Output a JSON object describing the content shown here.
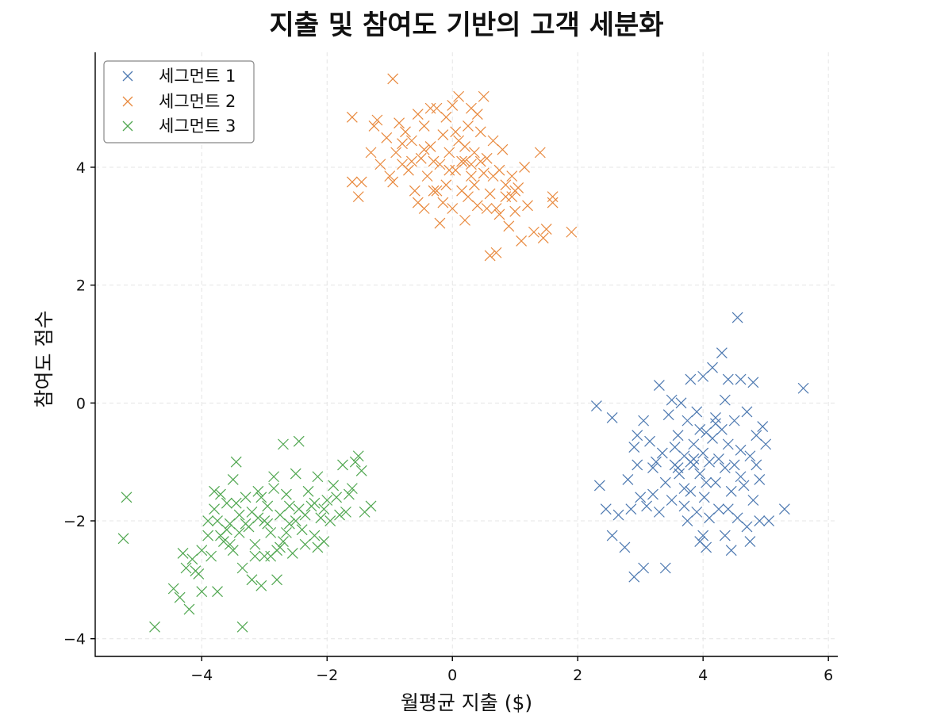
{
  "chart_data": {
    "type": "scatter",
    "title": "지출 및 참여도 기반의 고객 세분화",
    "xlabel": "월평균 지출 ($)",
    "ylabel": "참여도 점수",
    "xlim": [
      -5.7,
      6.15
    ],
    "ylim": [
      -4.3,
      5.95
    ],
    "xticks": [
      -4,
      -2,
      0,
      2,
      4,
      6
    ],
    "yticks": [
      -4,
      -2,
      0,
      2,
      4
    ],
    "xtick_labels": [
      "−4",
      "−2",
      "0",
      "2",
      "4",
      "6"
    ],
    "ytick_labels": [
      "−4",
      "−2",
      "0",
      "2",
      "4"
    ],
    "grid": true,
    "legend_position": "top-left",
    "marker": "x",
    "series": [
      {
        "name": "세그먼트 1",
        "color": "#4c78b0",
        "points": [
          [
            2.3,
            -0.05
          ],
          [
            2.35,
            -1.4
          ],
          [
            2.45,
            -1.8
          ],
          [
            2.55,
            -0.25
          ],
          [
            2.55,
            -2.25
          ],
          [
            2.65,
            -1.9
          ],
          [
            2.75,
            -2.45
          ],
          [
            2.8,
            -1.3
          ],
          [
            2.85,
            -1.8
          ],
          [
            2.9,
            -0.75
          ],
          [
            2.9,
            -2.95
          ],
          [
            2.95,
            -1.05
          ],
          [
            2.95,
            -0.55
          ],
          [
            3.0,
            -1.6
          ],
          [
            3.05,
            -2.8
          ],
          [
            3.1,
            -1.75
          ],
          [
            3.15,
            -0.65
          ],
          [
            3.2,
            -1.55
          ],
          [
            3.25,
            -1.0
          ],
          [
            3.3,
            0.3
          ],
          [
            3.3,
            -1.85
          ],
          [
            3.35,
            -0.85
          ],
          [
            3.4,
            -2.8
          ],
          [
            3.4,
            -1.35
          ],
          [
            3.45,
            -0.2
          ],
          [
            3.5,
            -1.65
          ],
          [
            3.55,
            -1.05
          ],
          [
            3.6,
            -0.55
          ],
          [
            3.62,
            -1.2
          ],
          [
            3.65,
            0.0
          ],
          [
            3.7,
            -0.9
          ],
          [
            3.7,
            -1.75
          ],
          [
            3.75,
            -0.3
          ],
          [
            3.75,
            -2.0
          ],
          [
            3.8,
            -1.5
          ],
          [
            3.8,
            0.4
          ],
          [
            3.85,
            -1.05
          ],
          [
            3.85,
            -0.7
          ],
          [
            3.9,
            -1.85
          ],
          [
            3.9,
            -0.15
          ],
          [
            3.95,
            -1.2
          ],
          [
            3.95,
            -2.35
          ],
          [
            4.0,
            -0.85
          ],
          [
            4.0,
            0.45
          ],
          [
            4.02,
            -1.6
          ],
          [
            4.05,
            -2.45
          ],
          [
            4.05,
            -0.5
          ],
          [
            4.1,
            -1.0
          ],
          [
            4.1,
            -1.95
          ],
          [
            4.15,
            0.6
          ],
          [
            4.15,
            -0.6
          ],
          [
            4.2,
            -1.35
          ],
          [
            4.2,
            -0.25
          ],
          [
            4.25,
            -1.8
          ],
          [
            4.3,
            0.85
          ],
          [
            4.3,
            -0.45
          ],
          [
            4.35,
            -1.1
          ],
          [
            4.35,
            -2.25
          ],
          [
            4.4,
            0.4
          ],
          [
            4.4,
            -0.7
          ],
          [
            4.45,
            -1.5
          ],
          [
            4.45,
            -2.5
          ],
          [
            4.5,
            -0.3
          ],
          [
            4.5,
            -1.05
          ],
          [
            4.55,
            1.45
          ],
          [
            4.55,
            -1.95
          ],
          [
            4.6,
            -0.8
          ],
          [
            4.6,
            0.4
          ],
          [
            4.65,
            -1.4
          ],
          [
            4.7,
            -0.15
          ],
          [
            4.7,
            -2.1
          ],
          [
            4.75,
            -0.9
          ],
          [
            4.8,
            -1.65
          ],
          [
            4.8,
            0.35
          ],
          [
            4.85,
            -0.55
          ],
          [
            4.9,
            -1.3
          ],
          [
            4.9,
            -2.0
          ],
          [
            4.95,
            -0.4
          ],
          [
            5.0,
            -0.7
          ],
          [
            5.05,
            -2.0
          ],
          [
            5.3,
            -1.8
          ],
          [
            5.6,
            0.25
          ],
          [
            3.5,
            0.05
          ],
          [
            3.6,
            -1.1
          ],
          [
            3.8,
            -1.0
          ],
          [
            4.05,
            -1.35
          ],
          [
            4.25,
            -0.95
          ],
          [
            4.4,
            -1.8
          ],
          [
            3.95,
            -0.45
          ],
          [
            3.7,
            -1.45
          ],
          [
            4.6,
            -1.25
          ],
          [
            4.85,
            -1.05
          ],
          [
            3.2,
            -1.1
          ],
          [
            4.0,
            -2.25
          ],
          [
            3.55,
            -0.75
          ],
          [
            4.2,
            -0.35
          ],
          [
            3.05,
            -0.3
          ],
          [
            4.35,
            0.05
          ],
          [
            4.75,
            -2.35
          ],
          [
            3.85,
            -0.95
          ]
        ]
      },
      {
        "name": "세그먼트 2",
        "color": "#e8883c",
        "points": [
          [
            -1.6,
            4.85
          ],
          [
            -1.6,
            3.75
          ],
          [
            -1.5,
            3.5
          ],
          [
            -1.45,
            3.75
          ],
          [
            -1.3,
            4.25
          ],
          [
            -1.2,
            4.8
          ],
          [
            -1.15,
            4.05
          ],
          [
            -1.05,
            4.5
          ],
          [
            -1.0,
            3.85
          ],
          [
            -0.95,
            5.5
          ],
          [
            -0.95,
            3.75
          ],
          [
            -0.9,
            4.25
          ],
          [
            -0.85,
            4.75
          ],
          [
            -0.8,
            4.05
          ],
          [
            -0.75,
            4.6
          ],
          [
            -0.7,
            3.95
          ],
          [
            -0.65,
            4.45
          ],
          [
            -0.6,
            3.6
          ],
          [
            -0.55,
            4.9
          ],
          [
            -0.5,
            4.15
          ],
          [
            -0.45,
            3.3
          ],
          [
            -0.45,
            4.7
          ],
          [
            -0.4,
            3.85
          ],
          [
            -0.35,
            4.35
          ],
          [
            -0.3,
            3.6
          ],
          [
            -0.25,
            5.0
          ],
          [
            -0.2,
            4.05
          ],
          [
            -0.2,
            3.05
          ],
          [
            -0.15,
            4.55
          ],
          [
            -0.1,
            3.7
          ],
          [
            -0.05,
            4.25
          ],
          [
            0.0,
            5.05
          ],
          [
            0.0,
            3.3
          ],
          [
            0.05,
            3.95
          ],
          [
            0.1,
            4.45
          ],
          [
            0.1,
            5.2
          ],
          [
            0.15,
            3.6
          ],
          [
            0.2,
            4.1
          ],
          [
            0.2,
            3.1
          ],
          [
            0.25,
            4.7
          ],
          [
            0.3,
            3.85
          ],
          [
            0.3,
            5.0
          ],
          [
            0.35,
            4.25
          ],
          [
            0.4,
            3.35
          ],
          [
            0.45,
            4.6
          ],
          [
            0.5,
            3.9
          ],
          [
            0.5,
            5.2
          ],
          [
            0.55,
            4.15
          ],
          [
            0.6,
            3.55
          ],
          [
            0.6,
            2.5
          ],
          [
            0.65,
            4.45
          ],
          [
            0.7,
            3.3
          ],
          [
            0.75,
            3.95
          ],
          [
            0.8,
            4.3
          ],
          [
            0.85,
            3.5
          ],
          [
            0.9,
            3.0
          ],
          [
            0.95,
            3.85
          ],
          [
            1.0,
            3.25
          ],
          [
            1.05,
            3.65
          ],
          [
            1.1,
            2.75
          ],
          [
            1.15,
            4.0
          ],
          [
            1.2,
            3.35
          ],
          [
            1.3,
            2.9
          ],
          [
            1.4,
            4.25
          ],
          [
            1.45,
            2.8
          ],
          [
            1.5,
            2.95
          ],
          [
            1.6,
            3.5
          ],
          [
            1.6,
            3.4
          ],
          [
            1.9,
            2.9
          ],
          [
            0.7,
            2.55
          ],
          [
            -0.3,
            4.1
          ],
          [
            -0.1,
            4.85
          ],
          [
            0.25,
            3.5
          ],
          [
            0.45,
            4.1
          ],
          [
            0.65,
            3.85
          ],
          [
            -0.55,
            3.4
          ],
          [
            -0.8,
            4.4
          ],
          [
            0.05,
            4.6
          ],
          [
            0.35,
            3.7
          ],
          [
            -0.65,
            4.1
          ],
          [
            0.15,
            4.1
          ],
          [
            0.55,
            3.3
          ],
          [
            -0.15,
            3.4
          ],
          [
            0.85,
            3.7
          ],
          [
            -0.35,
            5.0
          ],
          [
            0.95,
            3.5
          ],
          [
            -1.25,
            4.7
          ],
          [
            0.4,
            4.9
          ],
          [
            0.75,
            3.2
          ],
          [
            -0.05,
            3.95
          ],
          [
            0.2,
            4.35
          ],
          [
            1.0,
            3.6
          ],
          [
            -0.45,
            4.3
          ],
          [
            0.3,
            4.05
          ],
          [
            -0.25,
            3.6
          ]
        ]
      },
      {
        "name": "세그먼트 3",
        "color": "#4fa64f",
        "points": [
          [
            -5.25,
            -2.3
          ],
          [
            -5.2,
            -1.6
          ],
          [
            -4.75,
            -3.8
          ],
          [
            -4.45,
            -3.15
          ],
          [
            -4.35,
            -3.3
          ],
          [
            -4.3,
            -2.55
          ],
          [
            -4.25,
            -2.8
          ],
          [
            -4.2,
            -3.5
          ],
          [
            -4.15,
            -2.65
          ],
          [
            -4.1,
            -2.85
          ],
          [
            -4.0,
            -3.2
          ],
          [
            -4.0,
            -2.5
          ],
          [
            -3.9,
            -2.25
          ],
          [
            -3.85,
            -2.6
          ],
          [
            -3.8,
            -1.8
          ],
          [
            -3.75,
            -3.2
          ],
          [
            -3.75,
            -2.0
          ],
          [
            -3.7,
            -1.55
          ],
          [
            -3.65,
            -2.35
          ],
          [
            -3.6,
            -1.7
          ],
          [
            -3.55,
            -2.05
          ],
          [
            -3.5,
            -2.5
          ],
          [
            -3.5,
            -1.3
          ],
          [
            -3.45,
            -1.0
          ],
          [
            -3.4,
            -2.2
          ],
          [
            -3.35,
            -3.8
          ],
          [
            -3.35,
            -2.8
          ],
          [
            -3.3,
            -1.6
          ],
          [
            -3.25,
            -2.1
          ],
          [
            -3.2,
            -3.0
          ],
          [
            -3.15,
            -2.4
          ],
          [
            -3.1,
            -1.5
          ],
          [
            -3.1,
            -1.95
          ],
          [
            -3.05,
            -3.1
          ],
          [
            -3.0,
            -2.6
          ],
          [
            -2.95,
            -1.75
          ],
          [
            -2.9,
            -2.2
          ],
          [
            -2.85,
            -1.25
          ],
          [
            -2.8,
            -3.0
          ],
          [
            -2.8,
            -2.5
          ],
          [
            -2.75,
            -1.9
          ],
          [
            -2.7,
            -0.7
          ],
          [
            -2.7,
            -2.35
          ],
          [
            -2.65,
            -1.55
          ],
          [
            -2.6,
            -2.05
          ],
          [
            -2.55,
            -2.55
          ],
          [
            -2.5,
            -1.2
          ],
          [
            -2.45,
            -0.65
          ],
          [
            -2.45,
            -1.8
          ],
          [
            -2.4,
            -2.15
          ],
          [
            -2.35,
            -2.4
          ],
          [
            -2.3,
            -1.5
          ],
          [
            -2.25,
            -1.75
          ],
          [
            -2.2,
            -2.25
          ],
          [
            -2.15,
            -1.25
          ],
          [
            -2.1,
            -1.95
          ],
          [
            -2.05,
            -2.35
          ],
          [
            -2.0,
            -1.65
          ],
          [
            -1.95,
            -2.0
          ],
          [
            -1.9,
            -1.4
          ],
          [
            -1.8,
            -1.9
          ],
          [
            -1.75,
            -1.05
          ],
          [
            -1.7,
            -1.85
          ],
          [
            -1.65,
            -1.55
          ],
          [
            -1.6,
            -1.45
          ],
          [
            -1.55,
            -1.0
          ],
          [
            -1.5,
            -0.9
          ],
          [
            -1.45,
            -1.15
          ],
          [
            -1.4,
            -1.85
          ],
          [
            -1.3,
            -1.75
          ],
          [
            -3.6,
            -2.15
          ],
          [
            -3.0,
            -2.0
          ],
          [
            -2.6,
            -1.75
          ],
          [
            -3.2,
            -1.85
          ],
          [
            -2.9,
            -2.6
          ],
          [
            -3.45,
            -1.7
          ],
          [
            -2.2,
            -1.7
          ],
          [
            -3.7,
            -2.25
          ],
          [
            -2.5,
            -2.0
          ],
          [
            -3.15,
            -2.6
          ],
          [
            -2.85,
            -1.45
          ],
          [
            -3.55,
            -2.4
          ],
          [
            -2.35,
            -1.9
          ],
          [
            -4.05,
            -2.9
          ],
          [
            -3.8,
            -1.5
          ],
          [
            -1.85,
            -1.6
          ],
          [
            -2.05,
            -1.8
          ],
          [
            -3.3,
            -2.05
          ],
          [
            -2.65,
            -2.2
          ],
          [
            -3.05,
            -1.6
          ],
          [
            -2.75,
            -2.45
          ],
          [
            -3.4,
            -1.9
          ],
          [
            -2.15,
            -2.45
          ],
          [
            -3.9,
            -2.0
          ],
          [
            -2.95,
            -2.05
          ]
        ]
      }
    ]
  }
}
